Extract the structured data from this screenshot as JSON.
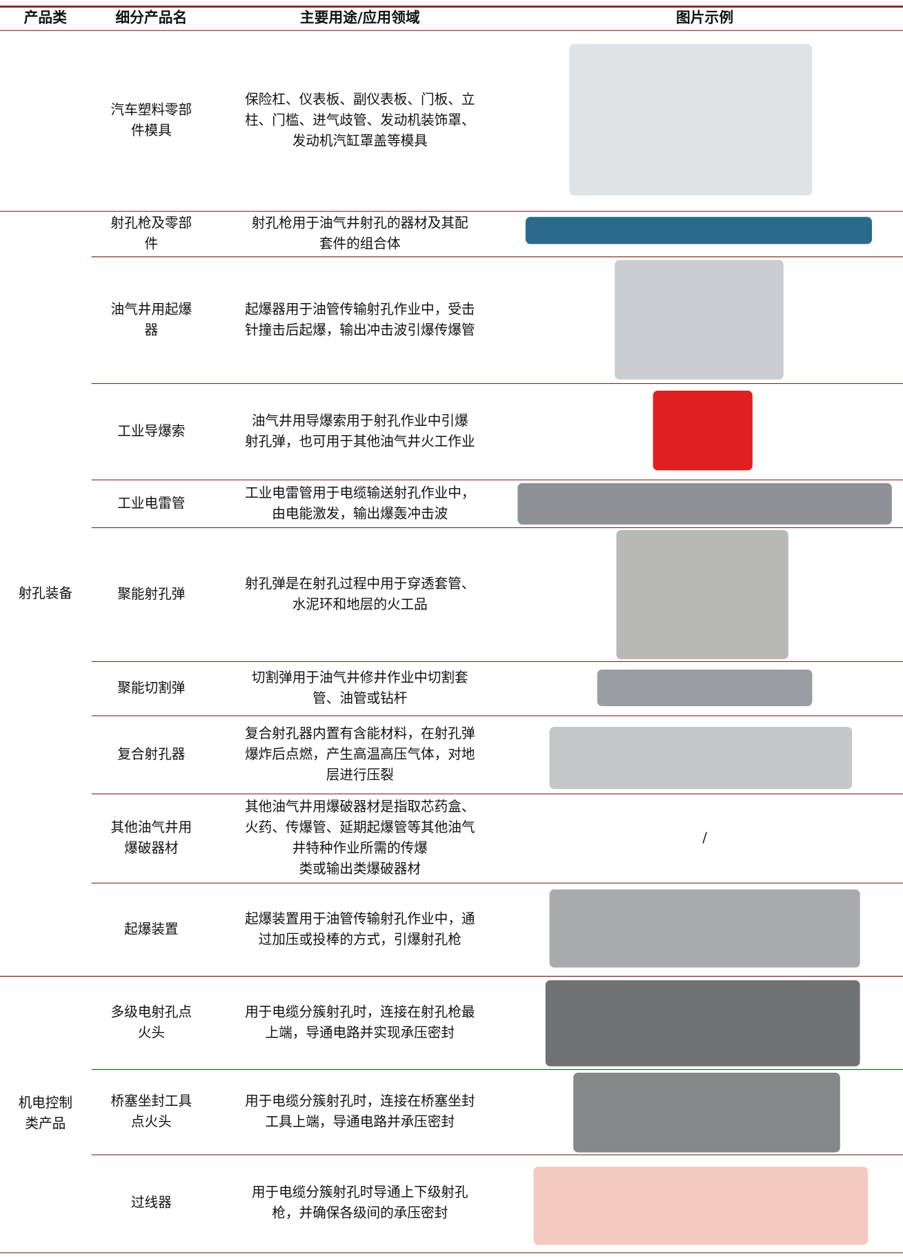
{
  "table": {
    "header": [
      "产品类",
      "细分产品名",
      "主要用途/应用领域",
      "图片示例"
    ],
    "groups": [
      {
        "rows": [
          {
            "name": [
              "汽车塑料零部",
              "件模具"
            ],
            "usage": [
              "保险杠、仪表板、副仪表板、门板、立",
              "柱、门槛、进气歧管、发动机装饰罩、",
              "发动机汽缸罩盖等模具"
            ]
          }
        ]
      },
      {
        "category": [
          "射孔装备"
        ],
        "rows": [
          {
            "name": [
              "射孔枪及零部",
              "件"
            ],
            "usage": [
              "射孔枪用于油气井射孔的器材及其配",
              "套件的组合体"
            ]
          },
          {
            "name": [
              "油气井用起爆",
              "器"
            ],
            "usage": [
              "起爆器用于油管传输射孔作业中，受击",
              "针撞击后起爆，输出冲击波引爆传爆管"
            ]
          },
          {
            "name": [
              "工业导爆索"
            ],
            "usage": [
              "油气井用导爆索用于射孔作业中引爆",
              "射孔弹，也可用于其他油气井火工作业"
            ]
          },
          {
            "name": [
              "工业电雷管"
            ],
            "usage": [
              "工业电雷管用于电缆输送射孔作业中，",
              "由电能激发，输出爆轰冲击波"
            ]
          },
          {
            "name": [
              "聚能射孔弹"
            ],
            "usage": [
              "射孔弹是在射孔过程中用于穿透套管、",
              "水泥环和地层的火工品"
            ]
          },
          {
            "name": [
              "聚能切割弹"
            ],
            "usage": [
              "切割弹用于油气井修井作业中切割套",
              "管、油管或钻杆"
            ]
          },
          {
            "name": [
              "复合射孔器"
            ],
            "usage": [
              "复合射孔器内置有含能材料，在射孔弹",
              "爆炸后点燃，产生高温高压气体，对地",
              "层进行压裂"
            ]
          },
          {
            "name": [
              "其他油气井用",
              "爆破器材"
            ],
            "usage": [
              "其他油气井用爆破器材是指取芯药盒、",
              "火药、传爆管、延期起爆管等其他油气",
              "井特种作业所需的传爆",
              "类或输出类爆破器材"
            ],
            "image_text": "/"
          },
          {
            "name": [
              "起爆装置"
            ],
            "usage": [
              "起爆装置用于油管传输射孔作业中，通",
              "过加压或投棒的方式，引爆射孔枪"
            ]
          }
        ]
      },
      {
        "category": [
          "机电控制",
          "类产品"
        ],
        "rows": [
          {
            "name": [
              "多级电射孔点",
              "火头"
            ],
            "usage": [
              "用于电缆分簇射孔时，连接在射孔枪最",
              "上端，导通电路并实现承压密封"
            ]
          },
          {
            "name": [
              "桥塞坐封工具",
              "点火头"
            ],
            "usage": [
              "用于电缆分簇射孔时，连接在桥塞坐封",
              "工具上端，导通电路并承压密封"
            ]
          },
          {
            "name": [
              "过线器"
            ],
            "usage": [
              "用于电缆分簇射孔时导通上下级射孔",
              "枪，并确保各级间的承压密封"
            ]
          }
        ]
      }
    ]
  }
}
